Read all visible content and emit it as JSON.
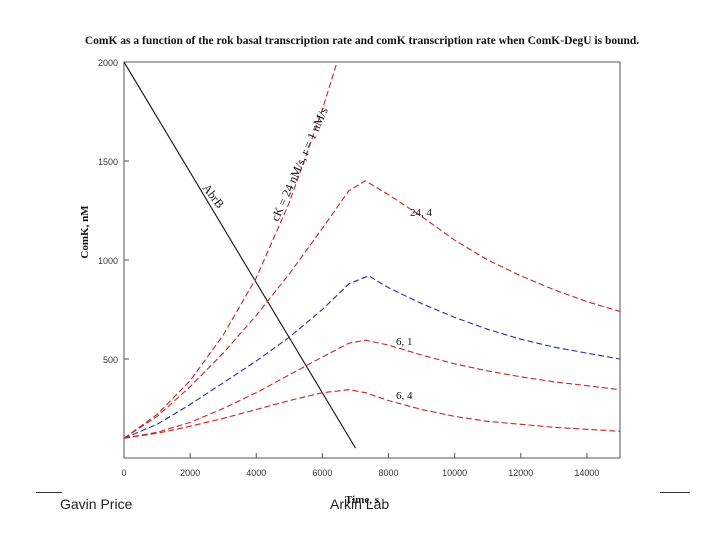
{
  "footer": {
    "left_text": "Gavin Price",
    "right_text": "Arkin Lab"
  },
  "colors": {
    "red": "#c0282a",
    "blue": "#2233aa",
    "black": "#111111"
  },
  "chart_data": {
    "type": "line",
    "title": "ComK as a function of the rok basal transcription rate and comK transcription rate when ComK-DegU is bound.",
    "xlabel": "Time, s",
    "ylabel": "ComK, nM",
    "xlim": [
      0,
      15000
    ],
    "ylim": [
      0,
      2000
    ],
    "x_ticks": [
      "0",
      "2000",
      "4000",
      "6000",
      "8000",
      "10000",
      "12000",
      "14000"
    ],
    "y_ticks": [
      "500",
      "1000",
      "1500",
      "2000"
    ],
    "grid": false,
    "series": [
      {
        "name": "AbrB",
        "color": "black",
        "dash": "",
        "x": [
          0,
          7000
        ],
        "y": [
          2000,
          50
        ]
      },
      {
        "name": "cK = 24 nM/s, r = 1 nM/s",
        "color": "red",
        "dash": "6 3",
        "x": [
          0,
          1000,
          2000,
          3000,
          4000,
          5000,
          6000,
          6500
        ],
        "y": [
          100,
          220,
          390,
          620,
          910,
          1290,
          1760,
          2030
        ]
      },
      {
        "name": "24, 4",
        "color": "red",
        "dash": "6 3",
        "x": [
          0,
          1000,
          2000,
          3000,
          4000,
          5000,
          6000,
          6800,
          7300,
          8000,
          9000,
          10000,
          11000,
          12000,
          13000,
          14000,
          15000
        ],
        "y": [
          100,
          210,
          360,
          530,
          720,
          930,
          1160,
          1350,
          1400,
          1330,
          1220,
          1100,
          1000,
          920,
          850,
          790,
          740
        ]
      },
      {
        "name": "",
        "color": "blue",
        "dash": "6 3",
        "x": [
          0,
          1000,
          2000,
          3000,
          4000,
          5000,
          6000,
          6800,
          7400,
          8000,
          9000,
          10000,
          11000,
          12000,
          13000,
          14000,
          15000
        ],
        "y": [
          100,
          170,
          270,
          380,
          490,
          610,
          750,
          880,
          920,
          860,
          780,
          710,
          650,
          600,
          560,
          530,
          500
        ]
      },
      {
        "name": "6, 1",
        "color": "red",
        "dash": "6 3",
        "x": [
          0,
          1000,
          2000,
          3000,
          4000,
          5000,
          6000,
          6800,
          7300,
          8000,
          9000,
          10000,
          11000,
          12000,
          13000,
          14000,
          15000
        ],
        "y": [
          100,
          130,
          180,
          250,
          330,
          420,
          510,
          580,
          595,
          570,
          520,
          475,
          440,
          410,
          385,
          365,
          345
        ]
      },
      {
        "name": "6, 4",
        "color": "red",
        "dash": "6 3",
        "x": [
          0,
          1000,
          2000,
          3000,
          4000,
          5000,
          6000,
          6800,
          7300,
          8000,
          9000,
          10000,
          11000,
          12000,
          13000,
          14000,
          15000
        ],
        "y": [
          100,
          125,
          160,
          200,
          245,
          290,
          330,
          345,
          330,
          290,
          245,
          210,
          185,
          170,
          155,
          145,
          135
        ]
      }
    ]
  }
}
